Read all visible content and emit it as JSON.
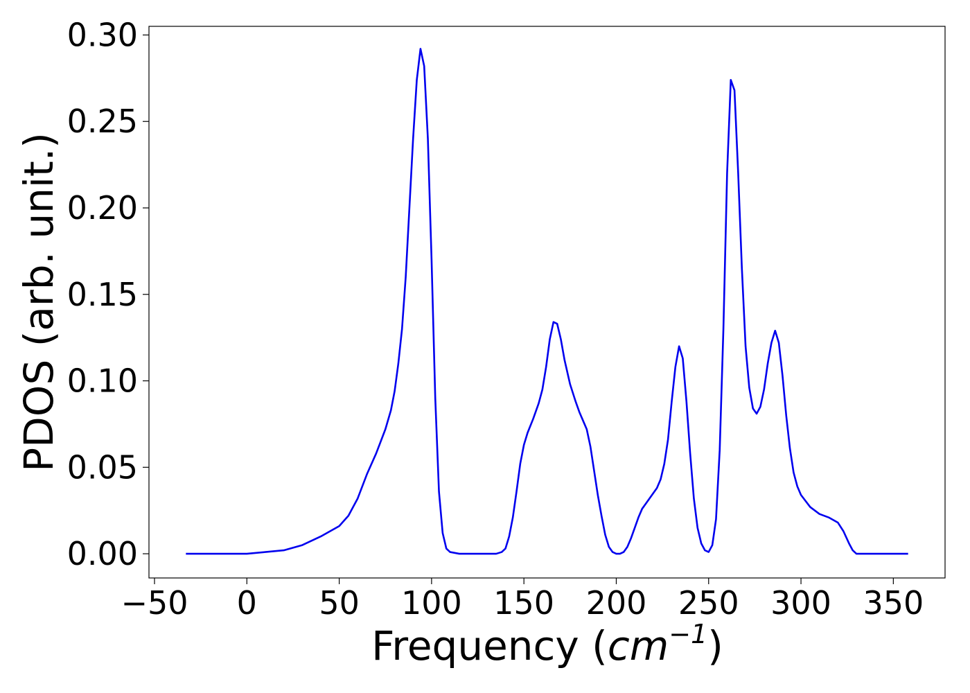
{
  "chart_data": {
    "type": "line",
    "title": "",
    "xlabel_main": "Frequency (",
    "xlabel_unit_base": "cm",
    "xlabel_unit_exp": "−1",
    "xlabel_close": ")",
    "ylabel": "PDOS (arb. unit.)",
    "xlim": [
      -53,
      378
    ],
    "ylim": [
      -0.014,
      0.305
    ],
    "xticks": [
      -50,
      0,
      50,
      100,
      150,
      200,
      250,
      300,
      350
    ],
    "xtick_labels": [
      "−50",
      "0",
      "50",
      "100",
      "150",
      "200",
      "250",
      "300",
      "350"
    ],
    "yticks": [
      0.0,
      0.05,
      0.1,
      0.15,
      0.2,
      0.25,
      0.3
    ],
    "ytick_labels": [
      "0.00",
      "0.05",
      "0.10",
      "0.15",
      "0.20",
      "0.25",
      "0.30"
    ],
    "grid": false,
    "legend": "none",
    "line_color": "#0000ee",
    "series": [
      {
        "x": [
          -33,
          0,
          10,
          20,
          30,
          40,
          45,
          50,
          55,
          60,
          65,
          70,
          75,
          78,
          80,
          82,
          84,
          86,
          88,
          90,
          92,
          94,
          96,
          98,
          100,
          102,
          104,
          106,
          108,
          110,
          115,
          120,
          130,
          135,
          138,
          140,
          142,
          144,
          146,
          148,
          150,
          152,
          155,
          158,
          160,
          162,
          164,
          166,
          168,
          170,
          172,
          175,
          178,
          180,
          182,
          184,
          186,
          188,
          190,
          192,
          194,
          196,
          198,
          200,
          202,
          204,
          206,
          208,
          210,
          212,
          214,
          216,
          218,
          220,
          222,
          224,
          226,
          228,
          230,
          232,
          234,
          236,
          238,
          240,
          242,
          244,
          246,
          248,
          250,
          252,
          254,
          256,
          258,
          260,
          262,
          264,
          266,
          268,
          270,
          272,
          274,
          276,
          278,
          280,
          282,
          284,
          286,
          288,
          290,
          292,
          294,
          296,
          298,
          300,
          305,
          310,
          315,
          320,
          323,
          326,
          328,
          330,
          332,
          335,
          340,
          358
        ],
        "y": [
          0.0,
          0.0,
          0.001,
          0.002,
          0.005,
          0.01,
          0.013,
          0.016,
          0.022,
          0.032,
          0.046,
          0.058,
          0.072,
          0.083,
          0.094,
          0.11,
          0.13,
          0.16,
          0.2,
          0.24,
          0.274,
          0.292,
          0.282,
          0.24,
          0.17,
          0.09,
          0.036,
          0.012,
          0.003,
          0.001,
          0.0,
          0.0,
          0.0,
          0.0,
          0.001,
          0.003,
          0.01,
          0.021,
          0.036,
          0.052,
          0.063,
          0.07,
          0.078,
          0.087,
          0.095,
          0.108,
          0.124,
          0.134,
          0.133,
          0.124,
          0.112,
          0.098,
          0.088,
          0.082,
          0.077,
          0.072,
          0.062,
          0.048,
          0.034,
          0.022,
          0.011,
          0.004,
          0.001,
          0.0,
          0.0,
          0.001,
          0.004,
          0.009,
          0.015,
          0.021,
          0.026,
          0.029,
          0.032,
          0.035,
          0.038,
          0.043,
          0.052,
          0.066,
          0.088,
          0.108,
          0.12,
          0.113,
          0.088,
          0.058,
          0.032,
          0.015,
          0.006,
          0.002,
          0.001,
          0.005,
          0.02,
          0.06,
          0.13,
          0.22,
          0.274,
          0.268,
          0.22,
          0.165,
          0.12,
          0.096,
          0.084,
          0.081,
          0.085,
          0.095,
          0.11,
          0.122,
          0.129,
          0.122,
          0.103,
          0.08,
          0.061,
          0.047,
          0.039,
          0.034,
          0.027,
          0.023,
          0.021,
          0.018,
          0.013,
          0.006,
          0.002,
          0.0,
          0.0,
          0.0,
          0.0,
          0.0
        ]
      }
    ]
  }
}
